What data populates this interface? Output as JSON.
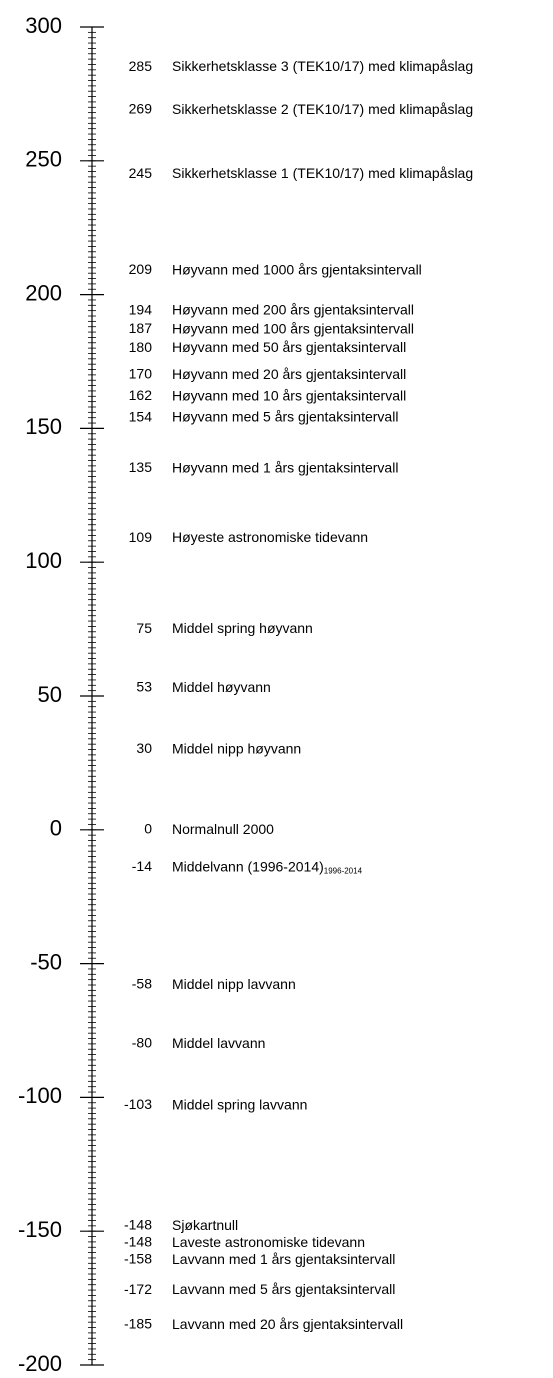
{
  "chart_data": {
    "type": "scale",
    "ylim": [
      -200,
      300
    ],
    "yticks": [
      300,
      250,
      200,
      150,
      100,
      50,
      0,
      -50,
      -100,
      -150,
      -200
    ],
    "minor_tick_step": 2,
    "color": "#000000",
    "levels": [
      {
        "value": 285,
        "label": "Sikkerhetsklasse 3 (TEK10/17) med klimapåslag"
      },
      {
        "value": 269,
        "label": "Sikkerhetsklasse 2 (TEK10/17) med klimapåslag"
      },
      {
        "value": 245,
        "label": "Sikkerhetsklasse 1 (TEK10/17) med klimapåslag"
      },
      {
        "value": 209,
        "label": "Høyvann med 1000 års gjentaksintervall"
      },
      {
        "value": 194,
        "label": "Høyvann med 200 års gjentaksintervall"
      },
      {
        "value": 187,
        "label": "Høyvann med 100 års gjentaksintervall"
      },
      {
        "value": 180,
        "label": "Høyvann med 50 års gjentaksintervall"
      },
      {
        "value": 170,
        "label": "Høyvann med 20 års gjentaksintervall"
      },
      {
        "value": 162,
        "label": "Høyvann med 10 års gjentaksintervall"
      },
      {
        "value": 154,
        "label": "Høyvann med 5 års gjentaksintervall"
      },
      {
        "value": 135,
        "label": "Høyvann med 1 års gjentaksintervall"
      },
      {
        "value": 109,
        "label": "Høyeste astronomiske tidevann"
      },
      {
        "value": 75,
        "label": "Middel spring høyvann"
      },
      {
        "value": 53,
        "label": "Middel høyvann"
      },
      {
        "value": 30,
        "label": "Middel nipp høyvann"
      },
      {
        "value": 0,
        "label": "Normalnull 2000"
      },
      {
        "value": -14,
        "label": "Middelvann (1996-2014)",
        "subscript": "1996-2014"
      },
      {
        "value": -58,
        "label": "Middel nipp lavvann"
      },
      {
        "value": -80,
        "label": "Middel lavvann"
      },
      {
        "value": -103,
        "label": "Middel spring lavvann"
      },
      {
        "value": -148,
        "label": "Sjøkartnull"
      },
      {
        "value": -148,
        "label": "Laveste astronomiske tidevann"
      },
      {
        "value": -158,
        "label": "Lavvann med 1 års gjentaksintervall"
      },
      {
        "value": -172,
        "label": "Lavvann med 5 års gjentaksintervall"
      },
      {
        "value": -185,
        "label": "Lavvann med 20 års gjentaksintervall"
      }
    ]
  }
}
